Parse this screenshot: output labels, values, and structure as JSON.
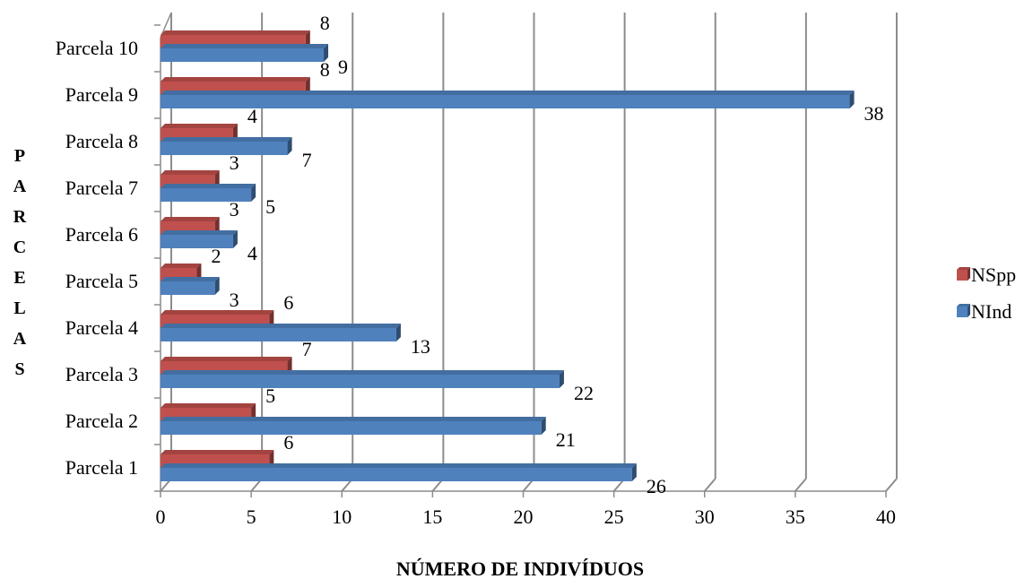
{
  "chart_data": {
    "type": "bar",
    "orientation": "horizontal",
    "style": "3d-clustered",
    "categories": [
      "Parcela 1",
      "Parcela 2",
      "Parcela 3",
      "Parcela 4",
      "Parcela 5",
      "Parcela 6",
      "Parcela 7",
      "Parcela 8",
      "Parcela 9",
      "Parcela 10"
    ],
    "series": [
      {
        "name": "NSpp",
        "color": "#c0504d",
        "values": [
          6,
          5,
          7,
          6,
          2,
          3,
          3,
          4,
          8,
          8
        ]
      },
      {
        "name": "NInd",
        "color": "#4f81bd",
        "values": [
          26,
          21,
          22,
          13,
          3,
          4,
          5,
          7,
          38,
          9
        ]
      }
    ],
    "xlabel": "NÚMERO DE INDIVÍDUOS",
    "ylabel": "PARCELAS",
    "xlim": [
      0,
      40
    ],
    "xticks": [
      "0",
      "5",
      "10",
      "15",
      "20",
      "25",
      "30",
      "35",
      "40"
    ],
    "grid": true,
    "legend": "right"
  }
}
